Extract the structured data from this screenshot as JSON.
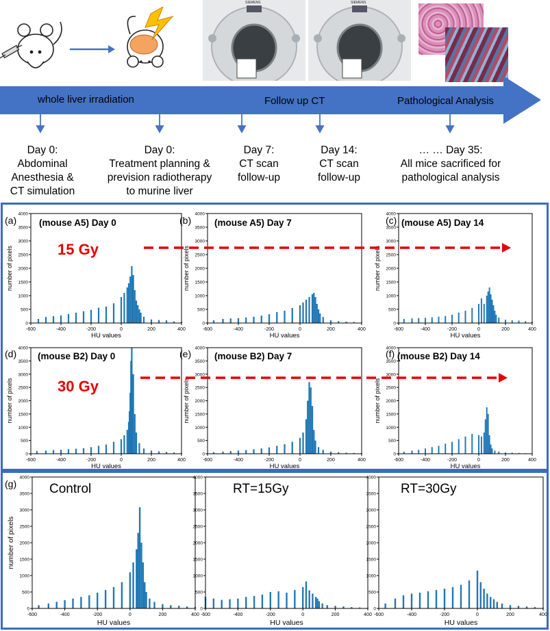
{
  "timeline": {
    "labels": [
      "whole liver irradiation",
      "Follow up CT",
      "Pathological Analysis"
    ],
    "steps": [
      {
        "title": "Day 0:",
        "lines": [
          "Abdominal",
          "Anesthesia &",
          "CT simulation"
        ]
      },
      {
        "title": "Day 0:",
        "lines": [
          "Treatment planning &",
          "prevision radiotherapy",
          "to murine liver"
        ]
      },
      {
        "title": "Day 7:",
        "lines": [
          "CT scan",
          "follow-up"
        ]
      },
      {
        "title": "Day 14:",
        "lines": [
          "CT scan",
          "follow-up"
        ]
      },
      {
        "title": "… … Day 35:",
        "lines": [
          "All mice sacrificed for",
          "pathological analysis"
        ]
      }
    ],
    "scanner_brand": "SIEMENS"
  },
  "colors": {
    "bar": "#1f77b4",
    "timeline": "#4472c4",
    "box": "#3a6ac4",
    "dose": "#e60000"
  },
  "doses": {
    "a": "15 Gy",
    "b": "30 Gy"
  },
  "axis_common": {
    "xlabel": "HU values",
    "ylabel": "number of pixels",
    "xticks": [
      "-600",
      "-400",
      "-200",
      "0",
      "200",
      "400"
    ],
    "yticks": [
      "0",
      "500",
      "1000",
      "1500",
      "2000",
      "2500",
      "3000",
      "3500",
      "4000"
    ]
  },
  "chart_data": [
    {
      "type": "bar",
      "panel": "(a)",
      "title": "(mouse A5) Day 0",
      "xlabel": "HU values",
      "ylabel": "number of pixels",
      "xlim": [
        -600,
        400
      ],
      "ylim": [
        0,
        4000
      ],
      "bin_width": 10,
      "x": [
        -550,
        -500,
        -450,
        -400,
        -350,
        -300,
        -250,
        -200,
        -150,
        -100,
        -50,
        0,
        20,
        40,
        50,
        60,
        70,
        80,
        90,
        100,
        110,
        120,
        130,
        150,
        200,
        250,
        300,
        350,
        400
      ],
      "y": [
        150,
        220,
        250,
        280,
        330,
        380,
        430,
        480,
        560,
        600,
        720,
        950,
        1100,
        1300,
        1450,
        1700,
        2080,
        1750,
        1200,
        820,
        650,
        500,
        380,
        230,
        130,
        110,
        100,
        60,
        40
      ]
    },
    {
      "type": "bar",
      "panel": "(b)",
      "title": "(mouse A5) Day 7",
      "xlabel": "HU values",
      "ylabel": "number of pixels",
      "xlim": [
        -600,
        400
      ],
      "ylim": [
        0,
        4000
      ],
      "bin_width": 10,
      "x": [
        -560,
        -500,
        -450,
        -400,
        -350,
        -300,
        -250,
        -200,
        -150,
        -100,
        -50,
        0,
        20,
        40,
        60,
        80,
        90,
        100,
        110,
        120,
        130,
        150,
        200,
        250,
        300,
        350,
        400
      ],
      "y": [
        100,
        150,
        170,
        180,
        200,
        230,
        270,
        320,
        400,
        450,
        550,
        650,
        750,
        850,
        950,
        1050,
        1100,
        950,
        700,
        500,
        350,
        220,
        100,
        70,
        50,
        40,
        20
      ]
    },
    {
      "type": "bar",
      "panel": "(c)",
      "title": "(mouse A5) Day 14",
      "xlabel": "HU values",
      "ylabel": "number of pixels",
      "xlim": [
        -600,
        400
      ],
      "ylim": [
        0,
        4000
      ],
      "bin_width": 10,
      "x": [
        -560,
        -500,
        -450,
        -400,
        -350,
        -300,
        -250,
        -200,
        -150,
        -100,
        -50,
        0,
        20,
        40,
        60,
        70,
        80,
        90,
        100,
        110,
        120,
        130,
        150,
        200,
        250,
        300,
        350,
        400
      ],
      "y": [
        150,
        170,
        180,
        190,
        210,
        230,
        260,
        300,
        380,
        450,
        550,
        700,
        900,
        700,
        1000,
        1150,
        1300,
        1050,
        850,
        650,
        450,
        300,
        200,
        120,
        100,
        90,
        70,
        40
      ]
    },
    {
      "type": "bar",
      "panel": "(d)",
      "title": "(mouse B2) Day 0",
      "xlabel": "HU values",
      "ylabel": "number of pixels",
      "xlim": [
        -600,
        400
      ],
      "ylim": [
        0,
        4000
      ],
      "bin_width": 10,
      "x": [
        -560,
        -500,
        -450,
        -400,
        -350,
        -300,
        -250,
        -200,
        -150,
        -100,
        -50,
        0,
        20,
        40,
        50,
        55,
        60,
        65,
        70,
        80,
        90,
        100,
        120,
        150,
        200,
        250,
        300,
        350,
        400
      ],
      "y": [
        100,
        120,
        140,
        150,
        170,
        190,
        210,
        250,
        300,
        350,
        450,
        550,
        700,
        900,
        1200,
        1600,
        2300,
        3500,
        4000,
        3000,
        1500,
        800,
        400,
        200,
        120,
        90,
        70,
        50,
        30
      ]
    },
    {
      "type": "bar",
      "panel": "(e)",
      "title": "(mouse B2) Day 7",
      "xlabel": "HU values",
      "ylabel": "number of pixels",
      "xlim": [
        -600,
        400
      ],
      "ylim": [
        0,
        4000
      ],
      "bin_width": 10,
      "x": [
        -560,
        -500,
        -450,
        -400,
        -350,
        -300,
        -250,
        -200,
        -150,
        -100,
        -50,
        0,
        20,
        40,
        50,
        60,
        70,
        80,
        90,
        100,
        120,
        150,
        200,
        250,
        300,
        350,
        400
      ],
      "y": [
        60,
        80,
        100,
        120,
        140,
        170,
        200,
        240,
        300,
        360,
        450,
        600,
        800,
        1300,
        2000,
        2700,
        2500,
        1800,
        900,
        500,
        250,
        150,
        80,
        60,
        40,
        30,
        20
      ]
    },
    {
      "type": "bar",
      "panel": "(f)",
      "title": "(mouse B2) Day 14",
      "xlabel": "HU values",
      "ylabel": "number of pixels",
      "xlim": [
        -600,
        400
      ],
      "ylim": [
        0,
        4000
      ],
      "bin_width": 10,
      "x": [
        -560,
        -500,
        -450,
        -400,
        -350,
        -300,
        -250,
        -200,
        -150,
        -100,
        -50,
        0,
        20,
        40,
        50,
        60,
        70,
        80,
        90,
        100,
        120,
        150,
        200,
        250,
        300,
        350,
        400
      ],
      "y": [
        80,
        120,
        150,
        200,
        250,
        300,
        380,
        450,
        550,
        650,
        750,
        700,
        650,
        800,
        1300,
        1750,
        1500,
        700,
        350,
        200,
        120,
        80,
        50,
        40,
        30,
        20,
        10
      ]
    },
    {
      "type": "bar",
      "panel": "(g)",
      "title": "Control",
      "xlabel": "HU values",
      "ylabel": "number of pixels",
      "xlim": [
        -600,
        400
      ],
      "ylim": [
        0,
        4000
      ],
      "bin_width": 10,
      "x": [
        -560,
        -500,
        -450,
        -400,
        -350,
        -300,
        -250,
        -200,
        -150,
        -100,
        -50,
        0,
        20,
        40,
        50,
        60,
        70,
        80,
        90,
        100,
        120,
        150,
        200,
        250,
        300,
        350,
        400
      ],
      "y": [
        100,
        150,
        200,
        250,
        300,
        350,
        400,
        480,
        560,
        650,
        800,
        1100,
        1400,
        1800,
        2300,
        3080,
        2000,
        1400,
        800,
        500,
        300,
        200,
        130,
        100,
        80,
        60,
        40
      ]
    },
    {
      "type": "bar",
      "panel": "",
      "title": "RT=15Gy",
      "xlabel": "HU values",
      "ylabel": "",
      "xlim": [
        -600,
        400
      ],
      "ylim": [
        0,
        4000
      ],
      "bin_width": 10,
      "x": [
        -600,
        -550,
        -500,
        -450,
        -400,
        -350,
        -300,
        -250,
        -200,
        -150,
        -100,
        -50,
        0,
        20,
        40,
        60,
        80,
        90,
        100,
        120,
        150,
        200,
        250,
        300,
        350,
        400
      ],
      "y": [
        350,
        300,
        260,
        280,
        300,
        350,
        380,
        420,
        500,
        520,
        480,
        560,
        650,
        820,
        550,
        450,
        350,
        300,
        220,
        150,
        100,
        80,
        60,
        40,
        30,
        20
      ]
    },
    {
      "type": "bar",
      "panel": "",
      "title": "RT=30Gy",
      "xlabel": "HU values",
      "ylabel": "",
      "xlim": [
        -600,
        400
      ],
      "ylim": [
        0,
        4000
      ],
      "bin_width": 10,
      "x": [
        -560,
        -500,
        -450,
        -400,
        -350,
        -300,
        -250,
        -200,
        -150,
        -100,
        -50,
        0,
        20,
        40,
        60,
        80,
        100,
        120,
        150,
        200,
        250,
        300,
        350,
        400
      ],
      "y": [
        150,
        300,
        400,
        450,
        480,
        520,
        560,
        600,
        650,
        720,
        850,
        1150,
        800,
        600,
        450,
        350,
        280,
        200,
        150,
        100,
        80,
        60,
        40,
        20
      ]
    }
  ]
}
